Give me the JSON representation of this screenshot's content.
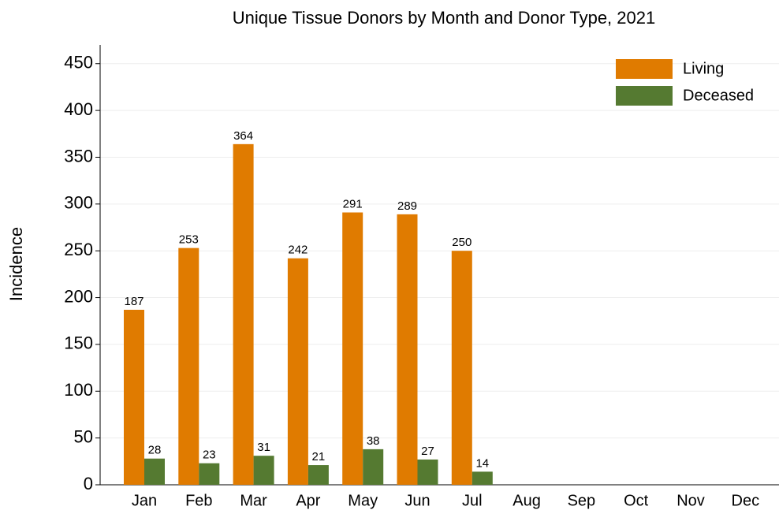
{
  "chart_data": {
    "type": "bar",
    "title": "Unique Tissue Donors by Month and Donor Type, 2021",
    "y_label": "Incidence",
    "categories": [
      "Jan",
      "Feb",
      "Mar",
      "Apr",
      "May",
      "Jun",
      "Jul",
      "Aug",
      "Sep",
      "Oct",
      "Nov",
      "Dec"
    ],
    "series": [
      {
        "name": "Living",
        "color": "#e07b00",
        "values": [
          187,
          253,
          364,
          242,
          291,
          289,
          250,
          null,
          null,
          null,
          null,
          null
        ]
      },
      {
        "name": "Deceased",
        "color": "#557a31",
        "values": [
          28,
          23,
          31,
          21,
          38,
          27,
          14,
          null,
          null,
          null,
          null,
          null
        ]
      }
    ],
    "ylim": [
      0,
      470
    ],
    "yticks": [
      0,
      50,
      100,
      150,
      200,
      250,
      300,
      350,
      400,
      450
    ],
    "grid": true,
    "legend": "top-right"
  }
}
